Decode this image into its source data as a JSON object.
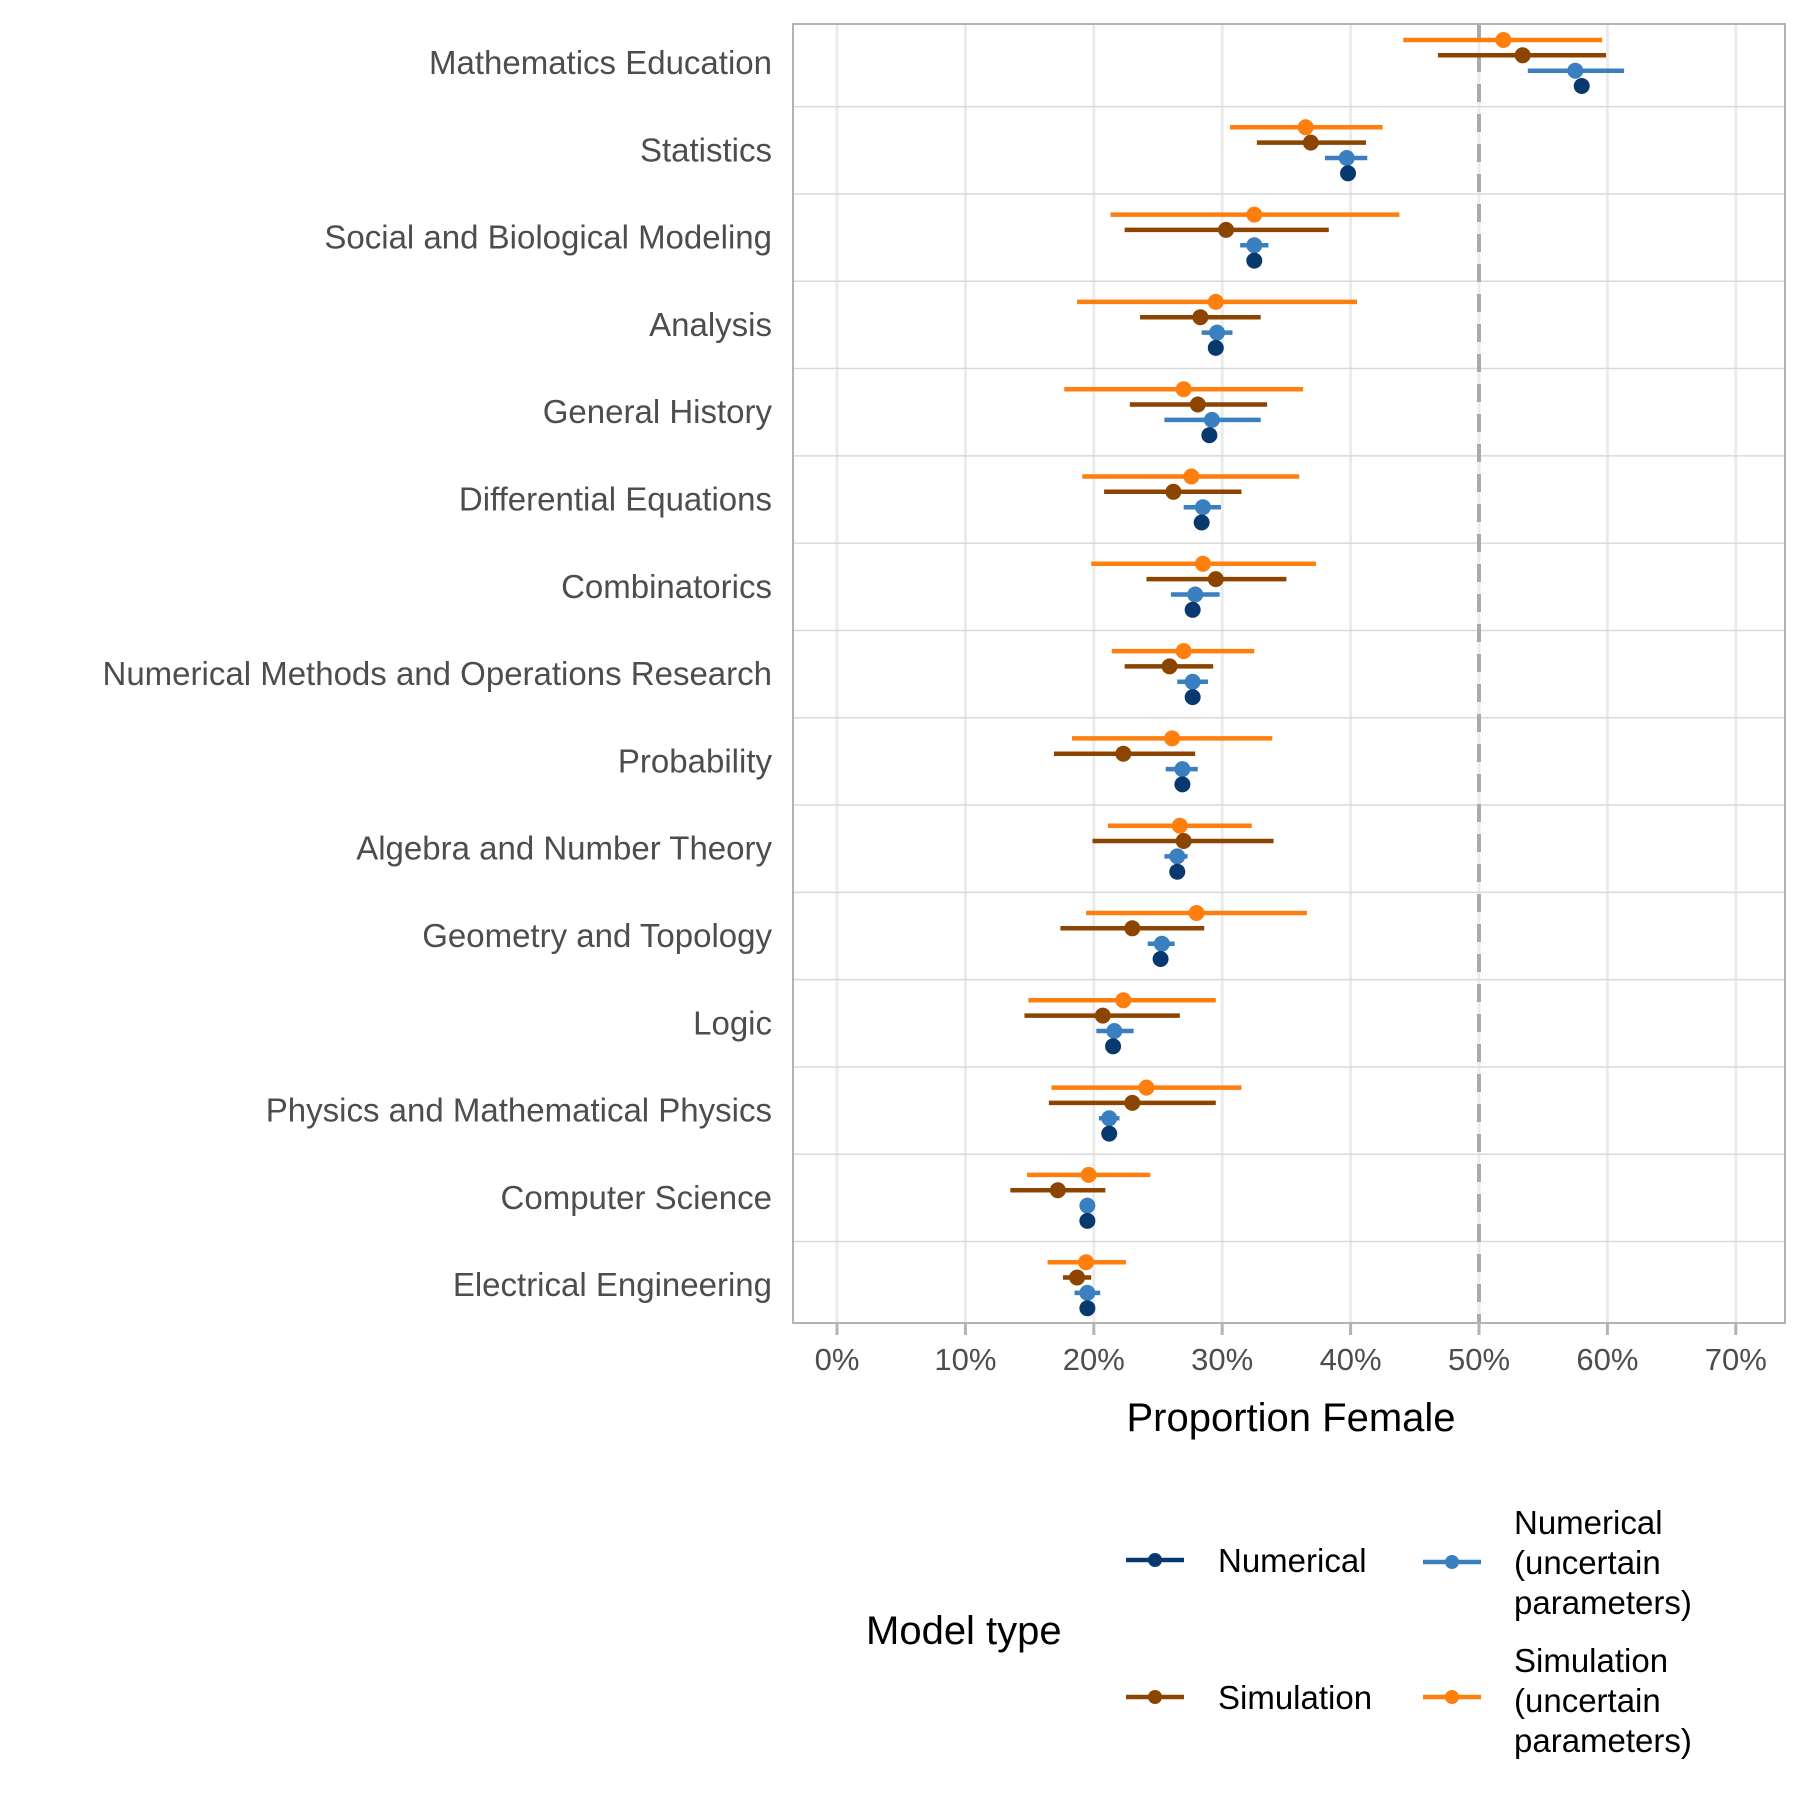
{
  "chart_data": {
    "type": "scatter",
    "subtype": "dot-and-interval (point range) plot, horizontal",
    "title": "",
    "xlabel": "Proportion Female",
    "ylabel": "",
    "xlim": [
      0,
      0.7
    ],
    "x_ticks": [
      0,
      0.1,
      0.2,
      0.3,
      0.4,
      0.5,
      0.6,
      0.7
    ],
    "x_tick_labels": [
      "0%",
      "10%",
      "20%",
      "30%",
      "40%",
      "50%",
      "60%",
      "70%"
    ],
    "reference_line": {
      "x": 0.5,
      "style": "dashed",
      "color": "#aaaaaa"
    },
    "grid": true,
    "legend": {
      "title": "Model type",
      "placement": "bottom",
      "entries": [
        {
          "key": "numerical",
          "lines": [
            "Numerical"
          ]
        },
        {
          "key": "numerical_uncertain",
          "lines": [
            "Numerical",
            "(uncertain",
            "parameters)"
          ]
        },
        {
          "key": "simulation",
          "lines": [
            "Simulation"
          ]
        },
        {
          "key": "simulation_uncertain",
          "lines": [
            "Simulation",
            "(uncertain",
            "parameters)"
          ]
        }
      ]
    },
    "categories": [
      "Mathematics Education",
      "Statistics",
      "Social and Biological Modeling",
      "Analysis",
      "General History",
      "Differential Equations",
      "Combinatorics",
      "Numerical Methods and Operations Research",
      "Probability",
      "Algebra and Number Theory",
      "Geometry and Topology",
      "Logic",
      "Physics and Mathematical Physics",
      "Computer Science",
      "Electrical Engineering"
    ],
    "series": [
      {
        "key": "simulation_uncertain",
        "name": "Simulation (uncertain parameters)",
        "color": "#ff7f0e",
        "values": [
          0.519,
          0.365,
          0.325,
          0.295,
          0.27,
          0.276,
          0.285,
          0.27,
          0.261,
          0.267,
          0.28,
          0.223,
          0.241,
          0.196,
          0.194
        ],
        "low": [
          0.441,
          0.306,
          0.213,
          0.187,
          0.177,
          0.191,
          0.198,
          0.214,
          0.183,
          0.211,
          0.194,
          0.149,
          0.167,
          0.148,
          0.164
        ],
        "high": [
          0.596,
          0.425,
          0.438,
          0.405,
          0.363,
          0.36,
          0.373,
          0.325,
          0.339,
          0.323,
          0.366,
          0.295,
          0.315,
          0.244,
          0.225
        ]
      },
      {
        "key": "simulation",
        "name": "Simulation",
        "color": "#8b4500",
        "values": [
          0.534,
          0.369,
          0.303,
          0.283,
          0.281,
          0.262,
          0.295,
          0.259,
          0.223,
          0.27,
          0.23,
          0.207,
          0.23,
          0.172,
          0.187
        ],
        "low": [
          0.468,
          0.327,
          0.224,
          0.236,
          0.228,
          0.208,
          0.241,
          0.224,
          0.169,
          0.199,
          0.174,
          0.146,
          0.165,
          0.135,
          0.176
        ],
        "high": [
          0.599,
          0.412,
          0.383,
          0.33,
          0.335,
          0.315,
          0.35,
          0.293,
          0.279,
          0.34,
          0.286,
          0.267,
          0.295,
          0.209,
          0.198
        ]
      },
      {
        "key": "numerical_uncertain",
        "name": "Numerical (uncertain parameters)",
        "color": "#3a7fbf",
        "values": [
          0.575,
          0.397,
          0.325,
          0.296,
          0.292,
          0.285,
          0.279,
          0.277,
          0.269,
          0.265,
          0.253,
          0.216,
          0.212,
          0.195,
          0.195
        ],
        "low": [
          0.538,
          0.38,
          0.314,
          0.284,
          0.255,
          0.27,
          0.26,
          0.265,
          0.256,
          0.255,
          0.242,
          0.202,
          0.204,
          0.193,
          0.185
        ],
        "high": [
          0.613,
          0.413,
          0.336,
          0.308,
          0.33,
          0.299,
          0.298,
          0.289,
          0.281,
          0.273,
          0.263,
          0.231,
          0.22,
          0.197,
          0.205
        ]
      },
      {
        "key": "numerical",
        "name": "Numerical",
        "color": "#08396e",
        "values": [
          0.58,
          0.398,
          0.325,
          0.295,
          0.29,
          0.284,
          0.277,
          0.277,
          0.269,
          0.265,
          0.252,
          0.215,
          0.212,
          0.195,
          0.195
        ],
        "low": null,
        "high": null
      }
    ]
  }
}
